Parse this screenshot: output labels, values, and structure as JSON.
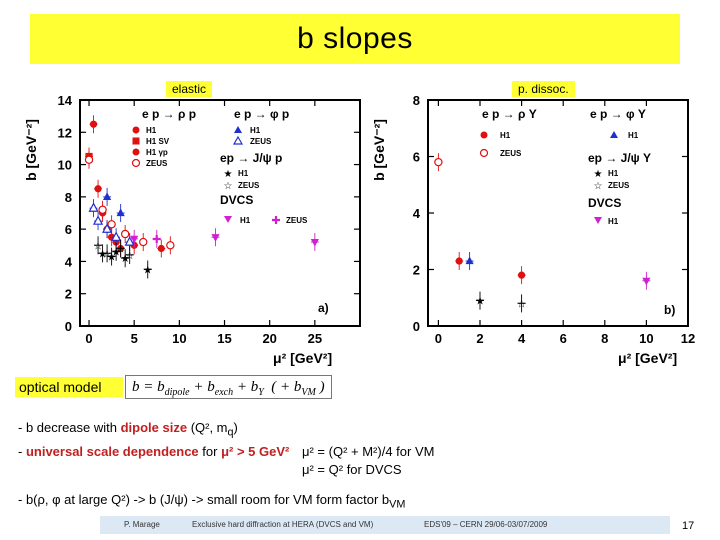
{
  "title": "b slopes",
  "panels": {
    "elastic_label": "elastic",
    "dissoc_label": "p. dissoc."
  },
  "chart_data": [
    {
      "type": "scatter",
      "id": "a",
      "panel_letter": "a)",
      "ylabel": "b [GeV⁻²]",
      "xlabel": "μ² [GeV²]",
      "xlim": [
        -1,
        30
      ],
      "ylim": [
        0,
        14
      ],
      "xticks": [
        "0",
        "5",
        "10",
        "15",
        "20",
        "25"
      ],
      "xtick_values": [
        0,
        5,
        10,
        15,
        20,
        25
      ],
      "yticks": [
        "0",
        "2",
        "4",
        "6",
        "8",
        "10",
        "12",
        "14"
      ],
      "ytick_values": [
        0,
        2,
        4,
        6,
        8,
        10,
        12,
        14
      ],
      "legend": {
        "title1": "e p → ρ p",
        "title2": "e p → φ p",
        "title3": "ep → J/ψ p",
        "title4": "DVCS",
        "h1": "H1",
        "h1sv": "H1 SV",
        "h1_98": "H1 γp",
        "zeus": "ZEUS",
        "h1_phi": "H1",
        "zeus_phi": "ZEUS",
        "h1_jpsi": "H1",
        "zeus_jpsi": "ZEUS",
        "h1_dvcs": "H1",
        "zeus_dvcs": "ZEUS"
      },
      "series": [
        {
          "name": "rho H1",
          "color": "#e01010",
          "marker": "circle",
          "x": [
            0.5,
            1.0,
            1.5,
            2.0,
            2.5,
            3.0,
            3.5,
            5.0,
            8.0
          ],
          "y": [
            12.5,
            8.5,
            7.0,
            6.0,
            5.5,
            5.2,
            4.8,
            5.0,
            4.8
          ]
        },
        {
          "name": "rho H1 SV",
          "color": "#e01010",
          "marker": "square",
          "x": [
            0.0
          ],
          "y": [
            10.5
          ]
        },
        {
          "name": "rho ZEUS",
          "color": "#e01010",
          "marker": "open-circle",
          "x": [
            0.0,
            1.5,
            2.5,
            4.0,
            6.0,
            9.0
          ],
          "y": [
            10.3,
            7.2,
            6.3,
            5.7,
            5.2,
            5.0
          ]
        },
        {
          "name": "phi H1",
          "color": "#2030d0",
          "marker": "triangle",
          "x": [
            2.0,
            3.5
          ],
          "y": [
            8.0,
            7.0
          ]
        },
        {
          "name": "phi ZEUS",
          "color": "#2030d0",
          "marker": "open-triangle",
          "x": [
            0.5,
            1.0,
            2.0,
            3.0,
            4.5
          ],
          "y": [
            7.3,
            6.5,
            6.0,
            5.5,
            5.2
          ]
        },
        {
          "name": "J/psi H1",
          "color": "#000000",
          "marker": "star",
          "x": [
            1.5,
            2.5,
            3.0,
            4.0,
            6.5
          ],
          "y": [
            4.5,
            4.3,
            4.6,
            4.2,
            3.5
          ]
        },
        {
          "name": "J/psi ZEUS",
          "color": "#000000",
          "marker": "open-star",
          "x": [
            1.0,
            2.0,
            3.5,
            4.5
          ],
          "y": [
            5.0,
            4.5,
            4.8,
            4.4
          ]
        },
        {
          "name": "DVCS H1",
          "color": "#d020d0",
          "marker": "tri-down",
          "x": [
            5.0,
            14.0,
            25.0
          ],
          "y": [
            5.4,
            5.5,
            5.2
          ]
        },
        {
          "name": "DVCS ZEUS",
          "color": "#d020d0",
          "marker": "open-plus",
          "x": [
            7.5
          ],
          "y": [
            5.4
          ]
        }
      ]
    },
    {
      "type": "scatter",
      "id": "b",
      "panel_letter": "b)",
      "ylabel": "b [GeV⁻²]",
      "xlabel": "μ² [GeV²]",
      "xlim": [
        -0.5,
        12
      ],
      "ylim": [
        0,
        8
      ],
      "xticks": [
        "0",
        "2",
        "4",
        "6",
        "8",
        "10",
        "12"
      ],
      "xtick_values": [
        0,
        2,
        4,
        6,
        8,
        10,
        12
      ],
      "yticks": [
        "0",
        "2",
        "4",
        "6",
        "8"
      ],
      "ytick_values": [
        0,
        2,
        4,
        6,
        8
      ],
      "legend": {
        "title1": "e p → ρ Y",
        "title2": "e p → φ Y",
        "title3": "ep → J/ψ Y",
        "title4": "DVCS",
        "h1": "H1",
        "zeus": "ZEUS",
        "h1_phi": "H1",
        "h1_jpsi": "H1",
        "zeus_jpsi": "ZEUS",
        "h1_dvcs": "H1"
      },
      "series": [
        {
          "name": "rho H1",
          "color": "#e01010",
          "marker": "circle",
          "x": [
            1.0,
            4.0
          ],
          "y": [
            2.3,
            1.8
          ]
        },
        {
          "name": "rho ZEUS",
          "color": "#e01010",
          "marker": "open-circle",
          "x": [
            0.0
          ],
          "y": [
            5.8
          ]
        },
        {
          "name": "phi H1",
          "color": "#2030d0",
          "marker": "triangle",
          "x": [
            1.5
          ],
          "y": [
            2.3
          ]
        },
        {
          "name": "J/psi H1",
          "color": "#000000",
          "marker": "star",
          "x": [
            2.0
          ],
          "y": [
            0.9
          ]
        },
        {
          "name": "J/psi ZEUS",
          "color": "#000000",
          "marker": "open-star",
          "x": [
            4.0
          ],
          "y": [
            0.8
          ]
        },
        {
          "name": "DVCS H1",
          "color": "#d020d0",
          "marker": "tri-down",
          "x": [
            10.0
          ],
          "y": [
            1.6
          ]
        }
      ]
    }
  ],
  "optical": {
    "label": "optical model"
  },
  "bullets": {
    "b1_pre": "- b decrease with ",
    "b1_hl": "dipole size",
    "b1_post": " (Q², m",
    "b1_sub": "q",
    "b1_end": ")",
    "b2_pre": "- ",
    "b2_hl": "universal scale dependence",
    "b2_mid": " for ",
    "b2_hl2": "μ² > 5 GeV²",
    "mu1": "μ² = (Q² + M²)/4 for VM",
    "mu2": "μ² = Q² for DVCS",
    "b3_pre": "- b(ρ, φ at large Q²) -> b (J/ψ) -> small room for VM form factor b",
    "b3_sub": "VM"
  },
  "footer": {
    "author": "P. Marage",
    "talk": "Exclusive hard diffraction at HERA (DVCS and VM)",
    "conf": "EDS'09 – CERN 29/06-03/07/2009"
  },
  "page_number": "17"
}
